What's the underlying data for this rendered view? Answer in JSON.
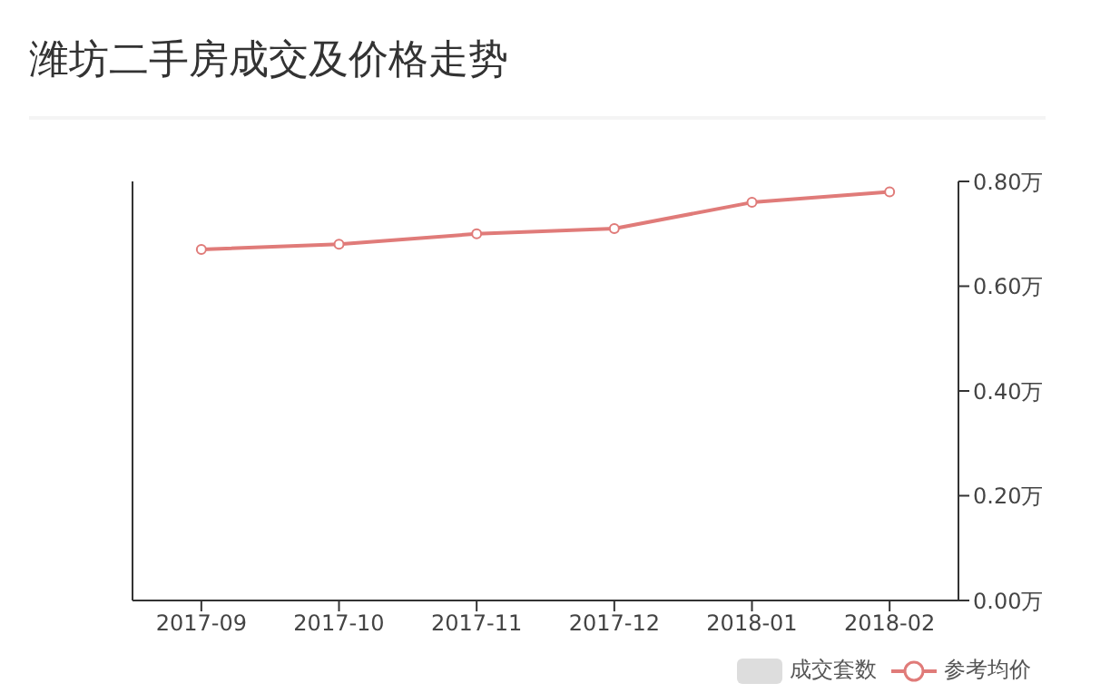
{
  "chart_data": {
    "type": "line",
    "title": "潍坊二手房成交及价格走势",
    "categories": [
      "2017-09",
      "2017-10",
      "2017-11",
      "2017-12",
      "2018-01",
      "2018-02"
    ],
    "series": [
      {
        "name": "成交套数",
        "type": "bar",
        "color": "#dddddd",
        "values": [
          null,
          null,
          null,
          null,
          null,
          null
        ]
      },
      {
        "name": "参考均价",
        "color": "#e07b79",
        "axis": "y2",
        "values": [
          0.67,
          0.68,
          0.7,
          0.71,
          0.76,
          0.78
        ]
      }
    ],
    "y2lim": [
      0,
      0.8
    ],
    "y2ticks": [
      {
        "value": 0,
        "label": "0.00万"
      },
      {
        "value": 0.2,
        "label": "0.20万"
      },
      {
        "value": 0.4,
        "label": "0.40万"
      },
      {
        "value": 0.6,
        "label": "0.60万"
      },
      {
        "value": 0.8,
        "label": "0.80万"
      }
    ],
    "marker": "circle",
    "grid": false,
    "legend": "bottom right",
    "tick_labels": [
      "x",
      "y2"
    ]
  }
}
